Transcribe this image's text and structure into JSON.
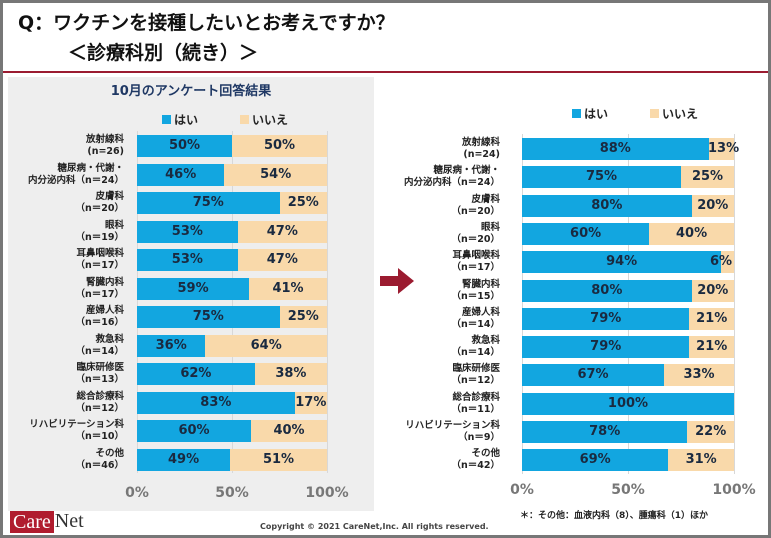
{
  "title": {
    "line1": "Q：ワクチンを接種したいとお考えですか？",
    "line2": "＜診療科別（続き）＞"
  },
  "legend": {
    "yes": "はい",
    "no": "いいえ"
  },
  "colors": {
    "yes": "#12a6e0",
    "no": "#f9d9aa",
    "accent": "#9b1b30"
  },
  "footnote": "＊：その他：血液内科（8）、腫瘍科（1）ほか",
  "copyright": "Copyright © 2021 CareNet,Inc.  All rights reserved.",
  "logo": {
    "part1": "Care",
    "part2": "Net"
  },
  "chart_data": [
    {
      "type": "bar",
      "orientation": "horizontal",
      "stacked": true,
      "title": "10月のアンケート回答結果",
      "categories": [
        "放射線科\n(n=26)",
        "糖尿病・代謝・\n内分泌内科（n＝24）",
        "皮膚科\n（n＝20）",
        "眼科\n（n＝19）",
        "耳鼻咽喉科\n（n＝17）",
        "腎臓内科\n（n＝17）",
        "産婦人科\n（n＝16）",
        "救急科\n（n＝14）",
        "臨床研修医\n（n＝13）",
        "総合診療科\n（n＝12）",
        "リハビリテーション科\n（n＝10）",
        "その他\n（n＝46）"
      ],
      "series": [
        {
          "name": "はい",
          "values": [
            50,
            46,
            75,
            53,
            53,
            59,
            75,
            36,
            62,
            83,
            60,
            49
          ]
        },
        {
          "name": "いいえ",
          "values": [
            50,
            54,
            25,
            47,
            47,
            41,
            25,
            64,
            38,
            17,
            40,
            51
          ]
        }
      ],
      "xlim": [
        0,
        100
      ],
      "xticks": [
        "0%",
        "50%",
        "100%"
      ],
      "legend_position": "top"
    },
    {
      "type": "bar",
      "orientation": "horizontal",
      "stacked": true,
      "title": "",
      "categories": [
        "放射線科\n(n=24)",
        "糖尿病・代謝・\n内分泌内科（n＝24）",
        "皮膚科\n（n＝20）",
        "眼科\n（n＝20）",
        "耳鼻咽喉科\n（n＝17）",
        "腎臓内科\n（n＝15）",
        "産婦人科\n（n＝14）",
        "救急科\n（n＝14）",
        "臨床研修医\n（n＝12）",
        "総合診療科\n（n＝11）",
        "リハビリテーション科\n（n＝9）",
        "その他\n（n＝42）"
      ],
      "series": [
        {
          "name": "はい",
          "values": [
            88,
            75,
            80,
            60,
            94,
            80,
            79,
            79,
            67,
            100,
            78,
            69
          ]
        },
        {
          "name": "いいえ",
          "values": [
            13,
            25,
            20,
            40,
            6,
            20,
            21,
            21,
            33,
            0,
            22,
            31
          ]
        }
      ],
      "xlim": [
        0,
        100
      ],
      "xticks": [
        "0%",
        "50%",
        "100%"
      ],
      "legend_position": "top"
    }
  ]
}
